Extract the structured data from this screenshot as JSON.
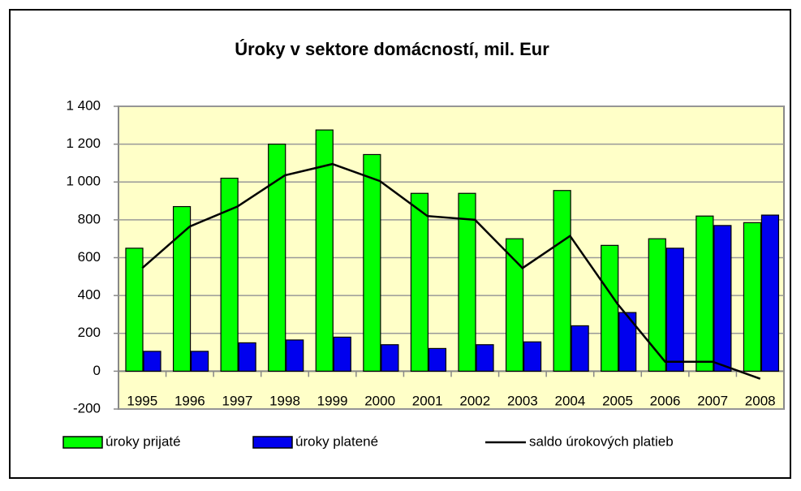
{
  "chart_data": {
    "type": "bar+line",
    "title": "Úroky v sektore domácností, mil. Eur",
    "categories": [
      "1995",
      "1996",
      "1997",
      "1998",
      "1999",
      "2000",
      "2001",
      "2002",
      "2003",
      "2004",
      "2005",
      "2006",
      "2007",
      "2008"
    ],
    "series": [
      {
        "name": "úroky prijaté",
        "type": "bar",
        "color": "#00ff00",
        "values": [
          650,
          870,
          1020,
          1200,
          1275,
          1145,
          940,
          940,
          700,
          955,
          665,
          700,
          820,
          785
        ]
      },
      {
        "name": "úroky platené",
        "type": "bar",
        "color": "#0000ee",
        "values": [
          105,
          105,
          150,
          165,
          180,
          140,
          120,
          140,
          155,
          240,
          310,
          650,
          770,
          825
        ]
      },
      {
        "name": "saldo úrokových platieb",
        "type": "line",
        "color": "#000000",
        "values": [
          545,
          765,
          870,
          1035,
          1095,
          1005,
          820,
          800,
          545,
          715,
          355,
          50,
          50,
          -40
        ]
      }
    ],
    "ylim": [
      -200,
      1400
    ],
    "yticks": [
      -200,
      0,
      200,
      400,
      600,
      800,
      {
        "value": 1000,
        "label": "1 000"
      },
      {
        "value": 1200,
        "label": "1 200"
      },
      {
        "value": 1400,
        "label": "1 400"
      }
    ],
    "grid": true,
    "legend": "bottom"
  }
}
